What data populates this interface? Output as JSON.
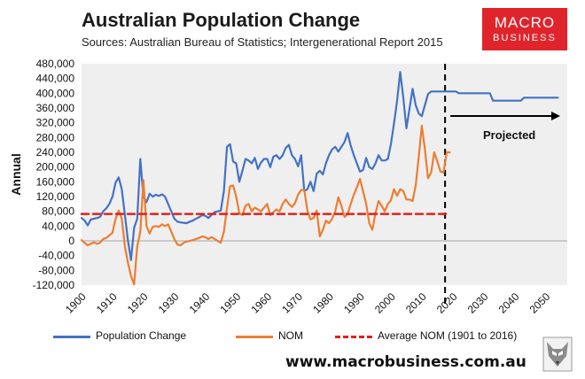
{
  "title": "Australian Population Change",
  "subtitle": "Sources: Australian Bureau of Statistics; Intergenerational Report 2015",
  "logo": {
    "line1": "MACRO",
    "line2": "BUSINESS",
    "color": "#e0242c"
  },
  "website": "www.macrobusiness.com.au",
  "chart_data": {
    "type": "line",
    "ylabel": "Annual",
    "xlim": [
      1900,
      2057
    ],
    "ylim": [
      -120000,
      480000
    ],
    "y_ticks": [
      480000,
      440000,
      400000,
      360000,
      320000,
      280000,
      240000,
      200000,
      160000,
      120000,
      80000,
      40000,
      0,
      -40000,
      -80000,
      -120000
    ],
    "y_tick_labels": [
      "480,000",
      "440,000",
      "400,000",
      "360,000",
      "320,000",
      "280,000",
      "240,000",
      "200,000",
      "160,000",
      "120,000",
      "80,000",
      "40,000",
      "0",
      "-40,000",
      "-80,000",
      "-120,000"
    ],
    "x_ticks": [
      1900,
      1910,
      1920,
      1930,
      1940,
      1950,
      1960,
      1970,
      1980,
      1990,
      2000,
      2010,
      2020,
      2030,
      2040,
      2050
    ],
    "x_tick_labels": [
      "1900",
      "1910",
      "1920",
      "1930",
      "1940",
      "1950",
      "1960",
      "1970",
      "1980",
      "1990",
      "2000",
      "2010",
      "2020",
      "2030",
      "2040",
      "2050"
    ],
    "divider_year": 2017.5,
    "annotation": "Projected",
    "series": [
      {
        "name": "Population Change",
        "color": "#4472c4",
        "points": [
          [
            1900,
            62000
          ],
          [
            1901,
            55000
          ],
          [
            1902,
            42000
          ],
          [
            1903,
            58000
          ],
          [
            1904,
            60000
          ],
          [
            1905,
            62000
          ],
          [
            1906,
            65000
          ],
          [
            1907,
            80000
          ],
          [
            1908,
            88000
          ],
          [
            1909,
            100000
          ],
          [
            1910,
            120000
          ],
          [
            1911,
            158000
          ],
          [
            1912,
            172000
          ],
          [
            1913,
            140000
          ],
          [
            1914,
            70000
          ],
          [
            1915,
            0
          ],
          [
            1916,
            -52000
          ],
          [
            1917,
            35000
          ],
          [
            1918,
            60000
          ],
          [
            1919,
            222000
          ],
          [
            1920,
            120000
          ],
          [
            1921,
            105000
          ],
          [
            1922,
            128000
          ],
          [
            1923,
            120000
          ],
          [
            1924,
            125000
          ],
          [
            1925,
            122000
          ],
          [
            1926,
            126000
          ],
          [
            1927,
            120000
          ],
          [
            1928,
            100000
          ],
          [
            1929,
            80000
          ],
          [
            1930,
            60000
          ],
          [
            1931,
            52000
          ],
          [
            1932,
            50000
          ],
          [
            1933,
            49000
          ],
          [
            1934,
            48000
          ],
          [
            1935,
            52000
          ],
          [
            1936,
            55000
          ],
          [
            1937,
            60000
          ],
          [
            1938,
            64000
          ],
          [
            1939,
            70000
          ],
          [
            1940,
            68000
          ],
          [
            1941,
            62000
          ],
          [
            1942,
            70000
          ],
          [
            1943,
            78000
          ],
          [
            1944,
            80000
          ],
          [
            1945,
            82000
          ],
          [
            1946,
            135000
          ],
          [
            1947,
            255000
          ],
          [
            1948,
            262000
          ],
          [
            1949,
            215000
          ],
          [
            1950,
            210000
          ],
          [
            1951,
            160000
          ],
          [
            1952,
            190000
          ],
          [
            1953,
            222000
          ],
          [
            1954,
            218000
          ],
          [
            1955,
            210000
          ],
          [
            1956,
            225000
          ],
          [
            1957,
            195000
          ],
          [
            1958,
            212000
          ],
          [
            1959,
            222000
          ],
          [
            1960,
            222000
          ],
          [
            1961,
            200000
          ],
          [
            1962,
            228000
          ],
          [
            1963,
            232000
          ],
          [
            1964,
            222000
          ],
          [
            1965,
            232000
          ],
          [
            1966,
            252000
          ],
          [
            1967,
            260000
          ],
          [
            1968,
            232000
          ],
          [
            1969,
            222000
          ],
          [
            1970,
            202000
          ],
          [
            1971,
            232000
          ],
          [
            1972,
            135000
          ],
          [
            1973,
            140000
          ],
          [
            1974,
            160000
          ],
          [
            1975,
            135000
          ],
          [
            1976,
            182000
          ],
          [
            1977,
            190000
          ],
          [
            1978,
            180000
          ],
          [
            1979,
            210000
          ],
          [
            1980,
            232000
          ],
          [
            1981,
            248000
          ],
          [
            1982,
            255000
          ],
          [
            1983,
            242000
          ],
          [
            1984,
            255000
          ],
          [
            1985,
            268000
          ],
          [
            1986,
            292000
          ],
          [
            1987,
            258000
          ],
          [
            1988,
            232000
          ],
          [
            1989,
            210000
          ],
          [
            1990,
            188000
          ],
          [
            1991,
            192000
          ],
          [
            1992,
            225000
          ],
          [
            1993,
            200000
          ],
          [
            1994,
            195000
          ],
          [
            1995,
            210000
          ],
          [
            1996,
            232000
          ],
          [
            1997,
            218000
          ],
          [
            1998,
            218000
          ],
          [
            1999,
            222000
          ],
          [
            2000,
            262000
          ],
          [
            2001,
            318000
          ],
          [
            2002,
            380000
          ],
          [
            2003,
            458000
          ],
          [
            2004,
            388000
          ],
          [
            2005,
            305000
          ],
          [
            2006,
            358000
          ],
          [
            2007,
            412000
          ],
          [
            2008,
            368000
          ],
          [
            2009,
            345000
          ],
          [
            2010,
            338000
          ],
          [
            2011,
            368000
          ],
          [
            2012,
            398000
          ],
          [
            2013,
            405000
          ],
          [
            2014,
            405000
          ],
          [
            2015,
            405000
          ],
          [
            2016,
            405000
          ],
          [
            2017,
            405000
          ],
          [
            2018,
            405000
          ],
          [
            2019,
            405000
          ],
          [
            2020,
            405000
          ],
          [
            2021,
            405000
          ],
          [
            2022,
            400000
          ],
          [
            2023,
            400000
          ],
          [
            2024,
            400000
          ],
          [
            2025,
            400000
          ],
          [
            2026,
            400000
          ],
          [
            2027,
            400000
          ],
          [
            2028,
            400000
          ],
          [
            2029,
            400000
          ],
          [
            2030,
            400000
          ],
          [
            2031,
            400000
          ],
          [
            2032,
            400000
          ],
          [
            2033,
            380000
          ],
          [
            2034,
            380000
          ],
          [
            2035,
            380000
          ],
          [
            2036,
            380000
          ],
          [
            2037,
            380000
          ],
          [
            2038,
            380000
          ],
          [
            2039,
            380000
          ],
          [
            2040,
            380000
          ],
          [
            2041,
            380000
          ],
          [
            2042,
            380000
          ],
          [
            2043,
            388000
          ],
          [
            2044,
            388000
          ],
          [
            2045,
            388000
          ],
          [
            2046,
            388000
          ],
          [
            2047,
            388000
          ],
          [
            2048,
            388000
          ],
          [
            2049,
            388000
          ],
          [
            2050,
            388000
          ],
          [
            2051,
            388000
          ],
          [
            2052,
            388000
          ],
          [
            2053,
            388000
          ],
          [
            2054,
            388000
          ]
        ]
      },
      {
        "name": "NOM",
        "color": "#ed7d31",
        "points": [
          [
            1900,
            2000
          ],
          [
            1901,
            -5000
          ],
          [
            1902,
            -12000
          ],
          [
            1903,
            -8000
          ],
          [
            1904,
            -4000
          ],
          [
            1905,
            -8000
          ],
          [
            1906,
            -5000
          ],
          [
            1907,
            5000
          ],
          [
            1908,
            8000
          ],
          [
            1909,
            15000
          ],
          [
            1910,
            22000
          ],
          [
            1911,
            60000
          ],
          [
            1912,
            82000
          ],
          [
            1913,
            60000
          ],
          [
            1914,
            -15000
          ],
          [
            1915,
            -60000
          ],
          [
            1916,
            -95000
          ],
          [
            1917,
            -118000
          ],
          [
            1918,
            -15000
          ],
          [
            1919,
            25000
          ],
          [
            1920,
            165000
          ],
          [
            1921,
            40000
          ],
          [
            1922,
            20000
          ],
          [
            1923,
            38000
          ],
          [
            1924,
            40000
          ],
          [
            1925,
            38000
          ],
          [
            1926,
            45000
          ],
          [
            1927,
            40000
          ],
          [
            1928,
            45000
          ],
          [
            1929,
            25000
          ],
          [
            1930,
            5000
          ],
          [
            1931,
            -10000
          ],
          [
            1932,
            -12000
          ],
          [
            1933,
            -5000
          ],
          [
            1934,
            -2000
          ],
          [
            1935,
            0
          ],
          [
            1936,
            2000
          ],
          [
            1937,
            5000
          ],
          [
            1938,
            8000
          ],
          [
            1939,
            12000
          ],
          [
            1940,
            10000
          ],
          [
            1941,
            5000
          ],
          [
            1942,
            10000
          ],
          [
            1943,
            5000
          ],
          [
            1944,
            0
          ],
          [
            1945,
            -5000
          ],
          [
            1946,
            25000
          ],
          [
            1947,
            90000
          ],
          [
            1948,
            148000
          ],
          [
            1949,
            150000
          ],
          [
            1950,
            120000
          ],
          [
            1951,
            75000
          ],
          [
            1952,
            70000
          ],
          [
            1953,
            95000
          ],
          [
            1954,
            100000
          ],
          [
            1955,
            80000
          ],
          [
            1956,
            90000
          ],
          [
            1957,
            85000
          ],
          [
            1958,
            80000
          ],
          [
            1959,
            90000
          ],
          [
            1960,
            100000
          ],
          [
            1961,
            70000
          ],
          [
            1962,
            78000
          ],
          [
            1963,
            85000
          ],
          [
            1964,
            80000
          ],
          [
            1965,
            100000
          ],
          [
            1966,
            112000
          ],
          [
            1967,
            100000
          ],
          [
            1968,
            92000
          ],
          [
            1969,
            102000
          ],
          [
            1970,
            125000
          ],
          [
            1971,
            138000
          ],
          [
            1972,
            138000
          ],
          [
            1973,
            82000
          ],
          [
            1974,
            58000
          ],
          [
            1975,
            62000
          ],
          [
            1976,
            82000
          ],
          [
            1977,
            12000
          ],
          [
            1978,
            30000
          ],
          [
            1979,
            55000
          ],
          [
            1980,
            48000
          ],
          [
            1981,
            60000
          ],
          [
            1982,
            80000
          ],
          [
            1983,
            118000
          ],
          [
            1984,
            95000
          ],
          [
            1985,
            65000
          ],
          [
            1986,
            72000
          ],
          [
            1987,
            100000
          ],
          [
            1988,
            125000
          ],
          [
            1989,
            145000
          ],
          [
            1990,
            168000
          ],
          [
            1991,
            135000
          ],
          [
            1992,
            100000
          ],
          [
            1993,
            48000
          ],
          [
            1994,
            30000
          ],
          [
            1995,
            75000
          ],
          [
            1996,
            108000
          ],
          [
            1997,
            95000
          ],
          [
            1998,
            80000
          ],
          [
            1999,
            100000
          ],
          [
            2000,
            110000
          ],
          [
            2001,
            140000
          ],
          [
            2002,
            122000
          ],
          [
            2003,
            140000
          ],
          [
            2004,
            135000
          ],
          [
            2005,
            112000
          ],
          [
            2006,
            112000
          ],
          [
            2007,
            108000
          ],
          [
            2008,
            150000
          ],
          [
            2009,
            230000
          ],
          [
            2010,
            312000
          ],
          [
            2011,
            248000
          ],
          [
            2012,
            170000
          ],
          [
            2013,
            185000
          ],
          [
            2014,
            240000
          ],
          [
            2015,
            215000
          ],
          [
            2016,
            188000
          ],
          [
            2017,
            185000
          ],
          [
            2018,
            240000
          ],
          [
            2019,
            240000
          ]
        ]
      },
      {
        "name": "Average NOM (1901 to 2016)",
        "color": "#e02020",
        "style": "dashed",
        "points": [
          [
            1900,
            73000
          ],
          [
            2018,
            73000
          ]
        ]
      }
    ]
  }
}
